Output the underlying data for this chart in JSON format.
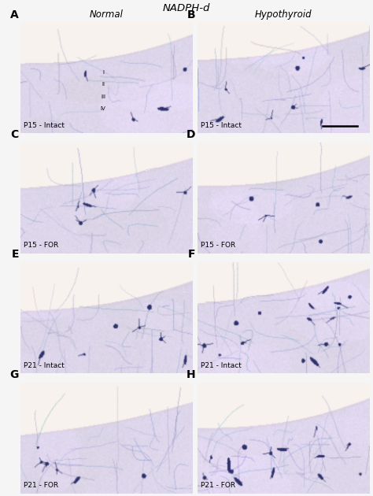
{
  "title_left": "Normal",
  "title_center": "NADPH-d",
  "title_right": "Hypothyroid",
  "panels": [
    {
      "label": "A",
      "sublabel": "P15 - Intact",
      "col": 0,
      "row": 0,
      "roman_numerals": true,
      "scale_bar": false
    },
    {
      "label": "B",
      "sublabel": "P15 - Intact",
      "col": 1,
      "row": 0,
      "roman_numerals": false,
      "scale_bar": true
    },
    {
      "label": "C",
      "sublabel": "P15 - FOR",
      "col": 0,
      "row": 1,
      "roman_numerals": false,
      "scale_bar": false
    },
    {
      "label": "D",
      "sublabel": "P15 - FOR",
      "col": 1,
      "row": 1,
      "roman_numerals": false,
      "scale_bar": false
    },
    {
      "label": "E",
      "sublabel": "P21 - Intact",
      "col": 0,
      "row": 2,
      "roman_numerals": false,
      "scale_bar": false
    },
    {
      "label": "F",
      "sublabel": "P21 - Intact",
      "col": 1,
      "row": 2,
      "roman_numerals": false,
      "scale_bar": false
    },
    {
      "label": "G",
      "sublabel": "P21 - FOR",
      "col": 0,
      "row": 3,
      "roman_numerals": false,
      "scale_bar": false
    },
    {
      "label": "H",
      "sublabel": "P21 - FOR",
      "col": 1,
      "row": 3,
      "roman_numerals": false,
      "scale_bar": false
    }
  ],
  "figure_bg": "#f5f5f5",
  "tissue_main": "#dcd4e8",
  "tissue_light": "#ebe5f0",
  "tissue_surface": "#e8d8d0",
  "fiber_color": "#8890c0",
  "cell_color": "#2a3068",
  "white_bg": "#ffffff"
}
